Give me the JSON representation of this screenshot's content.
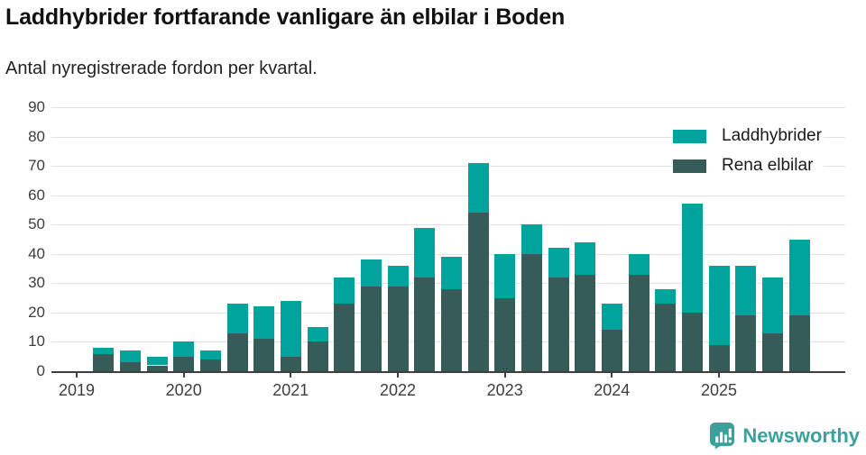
{
  "header": {
    "title": "Laddhybrider fortfarande vanligare än elbilar i Boden",
    "subtitle": "Antal nyregistrerade fordon per kvartal."
  },
  "legend": {
    "items": [
      {
        "label": "Laddhybrider",
        "color": "#00a49c"
      },
      {
        "label": "Rena elbilar",
        "color": "#365c57"
      }
    ]
  },
  "footer": {
    "brand": "Newsworthy",
    "color": "#3aa19d"
  },
  "chart_data": {
    "type": "bar",
    "stacked": true,
    "title": "Laddhybrider fortfarande vanligare än elbilar i Boden",
    "subtitle": "Antal nyregistrerade fordon per kvartal.",
    "grid": true,
    "legend_position": "top-right",
    "ylim": [
      0,
      90
    ],
    "yticks": [
      0,
      10,
      20,
      30,
      40,
      50,
      60,
      70,
      80,
      90
    ],
    "x_tick_labels": [
      "2019",
      "2020",
      "2021",
      "2022",
      "2023",
      "2024",
      "2025"
    ],
    "categories": [
      "2019 Q2",
      "2019 Q3",
      "2019 Q4",
      "2020 Q1",
      "2020 Q2",
      "2020 Q3",
      "2020 Q4",
      "2021 Q1",
      "2021 Q2",
      "2021 Q3",
      "2021 Q4",
      "2022 Q1",
      "2022 Q2",
      "2022 Q3",
      "2022 Q4",
      "2023 Q1",
      "2023 Q2",
      "2023 Q3",
      "2023 Q4",
      "2024 Q1",
      "2024 Q2",
      "2024 Q3",
      "2024 Q4",
      "2025 Q1",
      "2025 Q2",
      "2025 Q3",
      "2025 Q4"
    ],
    "series": [
      {
        "name": "Rena elbilar",
        "color": "#365c57",
        "values": [
          6,
          3,
          2,
          5,
          4,
          13,
          11,
          5,
          10,
          23,
          29,
          29,
          32,
          28,
          54,
          25,
          40,
          32,
          33,
          14,
          33,
          23,
          20,
          9,
          19,
          13,
          19
        ]
      },
      {
        "name": "Laddhybrider",
        "color": "#00a49c",
        "values": [
          2,
          4,
          3,
          5,
          3,
          10,
          11,
          19,
          5,
          9,
          9,
          7,
          17,
          11,
          17,
          15,
          10,
          10,
          11,
          9,
          7,
          5,
          37,
          27,
          17,
          19,
          26
        ]
      }
    ]
  }
}
